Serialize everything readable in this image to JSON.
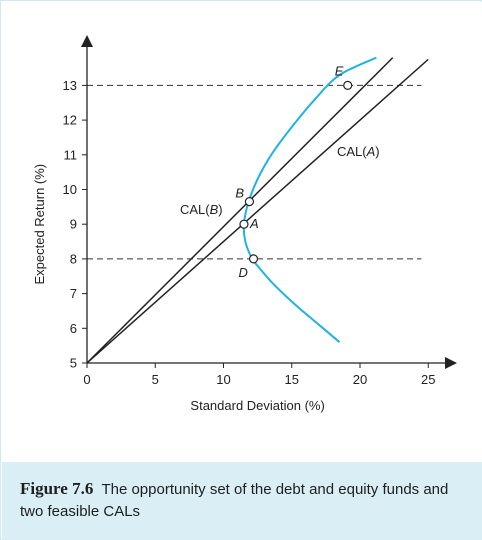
{
  "chart_data": {
    "type": "line",
    "xlabel": "Standard Deviation (%)",
    "ylabel": "Expected Return (%)",
    "xlim": [
      0,
      25
    ],
    "ylim": [
      5,
      13.8
    ],
    "x_ticks": [
      "0",
      "5",
      "10",
      "15",
      "20",
      "25"
    ],
    "y_ticks": [
      "5",
      "6",
      "7",
      "8",
      "9",
      "10",
      "11",
      "12",
      "13"
    ],
    "grid": false,
    "opportunity_set": [
      {
        "x": 18.5,
        "y": 5.6
      },
      {
        "x": 17.0,
        "y": 6.1
      },
      {
        "x": 15.2,
        "y": 6.7
      },
      {
        "x": 13.6,
        "y": 7.3
      },
      {
        "x": 12.5,
        "y": 7.8
      },
      {
        "x": 12.1,
        "y": 8.0
      },
      {
        "x": 11.6,
        "y": 8.5
      },
      {
        "x": 11.5,
        "y": 9.0
      },
      {
        "x": 11.8,
        "y": 9.6
      },
      {
        "x": 12.5,
        "y": 10.3
      },
      {
        "x": 13.5,
        "y": 11.0
      },
      {
        "x": 15.0,
        "y": 11.8
      },
      {
        "x": 16.7,
        "y": 12.6
      },
      {
        "x": 18.5,
        "y": 13.3
      },
      {
        "x": 21.2,
        "y": 13.8
      }
    ],
    "points": [
      {
        "label": "A",
        "x": 11.5,
        "y": 9.0
      },
      {
        "label": "B",
        "x": 11.9,
        "y": 9.65
      },
      {
        "label": "D",
        "x": 12.2,
        "y": 8.0
      },
      {
        "label": "E",
        "x": 19.1,
        "y": 13.0
      }
    ],
    "lines": [
      {
        "name": "CAL(A)",
        "x": [
          0,
          25
        ],
        "y": [
          5,
          13.75
        ]
      },
      {
        "name": "CAL(B)",
        "x": [
          0,
          22.4
        ],
        "y": [
          5,
          13.8
        ]
      }
    ],
    "reference_lines": [
      {
        "type": "horizontal",
        "y": 13
      },
      {
        "type": "horizontal",
        "y": 8
      }
    ],
    "colors": {
      "curve": "#1fb3e0",
      "axes": "#222222",
      "lines": "#222222",
      "caption_bg": "#d9eef5"
    }
  },
  "labels": {
    "point_A": "A",
    "point_B": "B",
    "point_D": "D",
    "point_E": "E",
    "cal_a": "CAL(A)",
    "cal_b": "CAL(B)"
  },
  "caption": {
    "number": "Figure 7.6",
    "text": "The opportunity set of the debt and equity funds and two feasible CALs"
  }
}
